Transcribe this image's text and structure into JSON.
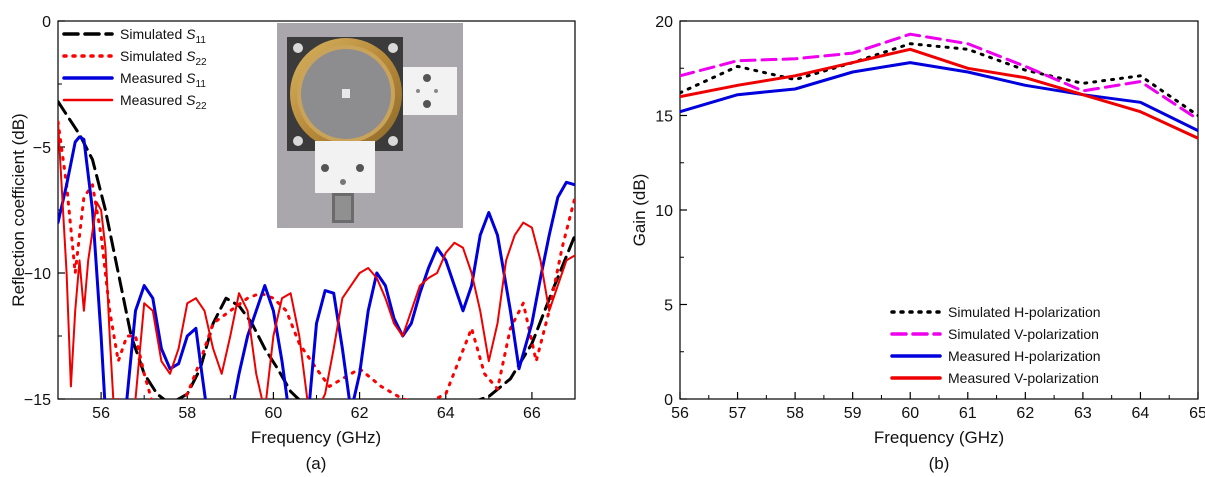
{
  "chart_data": [
    {
      "panel_label": "(a)",
      "type": "line",
      "xlabel": "Frequency (GHz)",
      "ylabel": "Reflection coefficient (dB)",
      "xlim": [
        55,
        67
      ],
      "ylim": [
        -15,
        0
      ],
      "xticks": [
        56,
        58,
        60,
        62,
        64,
        66
      ],
      "yticks": [
        -15,
        -10,
        -5,
        0
      ],
      "xtick_labels": [
        "56",
        "58",
        "60",
        "62",
        "64",
        "66"
      ],
      "ytick_labels": [
        "−15",
        "−10",
        "−5",
        "0"
      ],
      "legend_position": "top-left",
      "inset_photo": "antenna-prototype-photo",
      "series": [
        {
          "name": "Simulated S11",
          "name_main": "Simulated ",
          "name_sym": "S",
          "name_sub": "11",
          "color": "#000000",
          "dash": "dashed",
          "width": 3,
          "x": [
            55.0,
            55.5,
            55.8,
            56.1,
            56.4,
            56.7,
            57.0,
            57.3,
            57.6,
            58.0,
            58.3,
            58.6,
            58.9,
            59.2,
            59.5,
            59.8,
            60.1,
            60.4,
            60.7,
            61.0,
            61.5,
            62.0,
            62.5,
            63.0,
            63.5,
            64.0,
            64.5,
            65.0,
            65.5,
            66.0,
            66.5,
            67.0
          ],
          "y": [
            -3.2,
            -4.5,
            -5.5,
            -7.5,
            -10.0,
            -12.5,
            -14.0,
            -14.8,
            -15.2,
            -14.8,
            -13.8,
            -12.0,
            -11.0,
            -11.3,
            -12.0,
            -13.0,
            -13.8,
            -14.7,
            -15.2,
            -15.4,
            -15.6,
            -15.8,
            -15.8,
            -15.7,
            -15.6,
            -15.5,
            -15.2,
            -14.9,
            -14.2,
            -12.8,
            -10.6,
            -8.5
          ]
        },
        {
          "name": "Simulated S22",
          "name_main": "Simulated ",
          "name_sym": "S",
          "name_sub": "22",
          "color": "#ff0000",
          "dash": "dotted",
          "width": 3,
          "x": [
            55.0,
            55.2,
            55.4,
            55.6,
            55.8,
            56.0,
            56.2,
            56.4,
            56.6,
            56.8,
            57.0,
            57.2,
            57.5,
            57.8,
            58.0,
            58.3,
            58.6,
            59.0,
            59.4,
            59.7,
            60.0,
            60.3,
            60.6,
            61.0,
            61.3,
            61.6,
            62.0,
            62.5,
            63.0,
            63.5,
            64.0,
            64.3,
            64.6,
            64.9,
            65.2,
            65.5,
            65.8,
            66.1,
            66.4,
            66.7,
            67.0
          ],
          "y": [
            -4.0,
            -6.5,
            -10.0,
            -7.0,
            -6.5,
            -8.5,
            -11.5,
            -13.5,
            -12.5,
            -12.5,
            -14.0,
            -15.2,
            -15.4,
            -15.2,
            -14.8,
            -13.5,
            -12.0,
            -11.5,
            -11.0,
            -10.8,
            -11.0,
            -11.5,
            -12.8,
            -13.8,
            -14.5,
            -14.2,
            -13.8,
            -14.5,
            -15.0,
            -15.2,
            -14.8,
            -13.5,
            -12.2,
            -14.0,
            -14.6,
            -12.2,
            -11.2,
            -13.5,
            -11.5,
            -9.0,
            -7.0
          ]
        },
        {
          "name": "Measured S11",
          "name_main": "Measured ",
          "name_sym": "S",
          "name_sub": "11",
          "color": "#0000dd",
          "dash": "solid",
          "width": 3,
          "x": [
            55.0,
            55.2,
            55.4,
            55.5,
            55.6,
            55.8,
            56.0,
            56.1,
            56.3,
            56.6,
            56.8,
            57.0,
            57.2,
            57.4,
            57.6,
            57.8,
            58.0,
            58.2,
            58.3,
            58.5,
            58.8,
            59.0,
            59.2,
            59.4,
            59.6,
            59.8,
            60.0,
            60.2,
            60.4,
            60.6,
            60.8,
            61.0,
            61.2,
            61.4,
            61.6,
            61.8,
            62.0,
            62.2,
            62.4,
            62.6,
            62.8,
            63.0,
            63.2,
            63.4,
            63.6,
            63.8,
            64.0,
            64.2,
            64.4,
            64.6,
            64.8,
            65.0,
            65.2,
            65.5,
            65.7,
            66.0,
            66.2,
            66.4,
            66.6,
            66.8,
            67.0
          ],
          "y": [
            -8.0,
            -6.5,
            -4.8,
            -4.6,
            -4.7,
            -7.5,
            -12.5,
            -15.5,
            -16.0,
            -15.0,
            -11.5,
            -10.5,
            -11.0,
            -13.0,
            -13.8,
            -13.6,
            -12.5,
            -12.2,
            -13.5,
            -16.0,
            -16.5,
            -15.8,
            -14.0,
            -12.5,
            -11.5,
            -10.5,
            -11.5,
            -13.5,
            -16.0,
            -16.5,
            -15.8,
            -12.0,
            -10.7,
            -10.8,
            -13.0,
            -15.5,
            -14.0,
            -11.5,
            -10.0,
            -10.5,
            -11.8,
            -12.5,
            -12.0,
            -10.8,
            -9.8,
            -9.0,
            -9.5,
            -10.5,
            -11.5,
            -10.5,
            -8.5,
            -7.6,
            -8.5,
            -11.5,
            -13.8,
            -12.0,
            -10.2,
            -8.5,
            -7.0,
            -6.4,
            -6.5
          ]
        },
        {
          "name": "Measured S22",
          "name_main": "Measured ",
          "name_sym": "S",
          "name_sub": "22",
          "color": "#ee0000",
          "dash": "solid",
          "width": 2,
          "x": [
            55.0,
            55.2,
            55.3,
            55.4,
            55.5,
            55.6,
            55.7,
            55.9,
            56.0,
            56.1,
            56.2,
            56.3,
            56.4,
            56.6,
            56.8,
            57.0,
            57.2,
            57.4,
            57.6,
            57.8,
            58.0,
            58.2,
            58.4,
            58.6,
            58.8,
            59.0,
            59.2,
            59.4,
            59.6,
            59.8,
            60.0,
            60.2,
            60.4,
            60.6,
            60.8,
            61.0,
            61.2,
            61.4,
            61.6,
            61.8,
            62.0,
            62.2,
            62.4,
            62.6,
            62.8,
            63.0,
            63.2,
            63.4,
            63.6,
            63.8,
            64.0,
            64.2,
            64.4,
            64.6,
            64.8,
            65.0,
            65.2,
            65.4,
            65.6,
            65.8,
            66.0,
            66.2,
            66.4,
            66.6,
            66.8,
            67.0
          ],
          "y": [
            -4.0,
            -10.0,
            -14.5,
            -11.5,
            -9.5,
            -11.5,
            -9.5,
            -7.2,
            -7.5,
            -9.0,
            -12.5,
            -15.5,
            -15.0,
            -15.5,
            -15.0,
            -11.2,
            -11.5,
            -13.5,
            -14.0,
            -13.0,
            -11.2,
            -11.0,
            -11.5,
            -13.0,
            -14.0,
            -12.5,
            -10.8,
            -11.5,
            -14.0,
            -15.5,
            -12.5,
            -11.0,
            -10.8,
            -12.5,
            -15.2,
            -15.5,
            -14.8,
            -13.0,
            -11.0,
            -10.5,
            -10.0,
            -9.8,
            -10.2,
            -11.0,
            -12.0,
            -12.5,
            -11.5,
            -10.5,
            -10.2,
            -10.0,
            -9.2,
            -8.8,
            -9.0,
            -10.0,
            -11.5,
            -13.5,
            -12.0,
            -9.5,
            -8.5,
            -8.0,
            -8.2,
            -9.5,
            -11.5,
            -10.5,
            -9.5,
            -9.3
          ]
        }
      ]
    },
    {
      "panel_label": "(b)",
      "type": "line",
      "xlabel": "Frequency (GHz)",
      "ylabel": "Gain (dB)",
      "xlim": [
        56,
        65
      ],
      "ylim": [
        0,
        20
      ],
      "xticks": [
        56,
        57,
        58,
        59,
        60,
        61,
        62,
        63,
        64,
        65
      ],
      "yticks": [
        0,
        5,
        10,
        15,
        20
      ],
      "xtick_labels": [
        "56",
        "57",
        "58",
        "59",
        "60",
        "61",
        "62",
        "63",
        "64",
        "65"
      ],
      "ytick_labels": [
        "0",
        "5",
        "10",
        "15",
        "20"
      ],
      "legend_position": "bottom-right",
      "series": [
        {
          "name": "Simulated H-polarization",
          "color": "#000000",
          "dash": "dotted",
          "width": 3,
          "x": [
            56,
            57,
            58,
            59,
            60,
            61,
            62,
            63,
            64,
            65
          ],
          "y": [
            16.2,
            17.6,
            16.9,
            17.8,
            18.8,
            18.5,
            17.4,
            16.7,
            17.1,
            15.0
          ]
        },
        {
          "name": "Simulated V-polarization",
          "color": "#ee00ee",
          "dash": "dashed",
          "width": 3,
          "x": [
            56,
            57,
            58,
            59,
            60,
            61,
            62,
            63,
            64,
            65
          ],
          "y": [
            17.1,
            17.9,
            18.0,
            18.3,
            19.3,
            18.8,
            17.6,
            16.3,
            16.8,
            14.8
          ]
        },
        {
          "name": "Measured H-polarization",
          "color": "#0000dd",
          "dash": "solid",
          "width": 3,
          "x": [
            56,
            57,
            58,
            59,
            60,
            61,
            62,
            63,
            64,
            65
          ],
          "y": [
            15.2,
            16.1,
            16.4,
            17.3,
            17.8,
            17.3,
            16.6,
            16.1,
            15.7,
            14.2
          ]
        },
        {
          "name": "Measured V-polarization",
          "color": "#ee0000",
          "dash": "solid",
          "width": 3,
          "x": [
            56,
            57,
            58,
            59,
            60,
            61,
            62,
            63,
            64,
            65
          ],
          "y": [
            16.0,
            16.6,
            17.1,
            17.8,
            18.5,
            17.5,
            17.0,
            16.1,
            15.2,
            13.8
          ]
        }
      ]
    }
  ]
}
